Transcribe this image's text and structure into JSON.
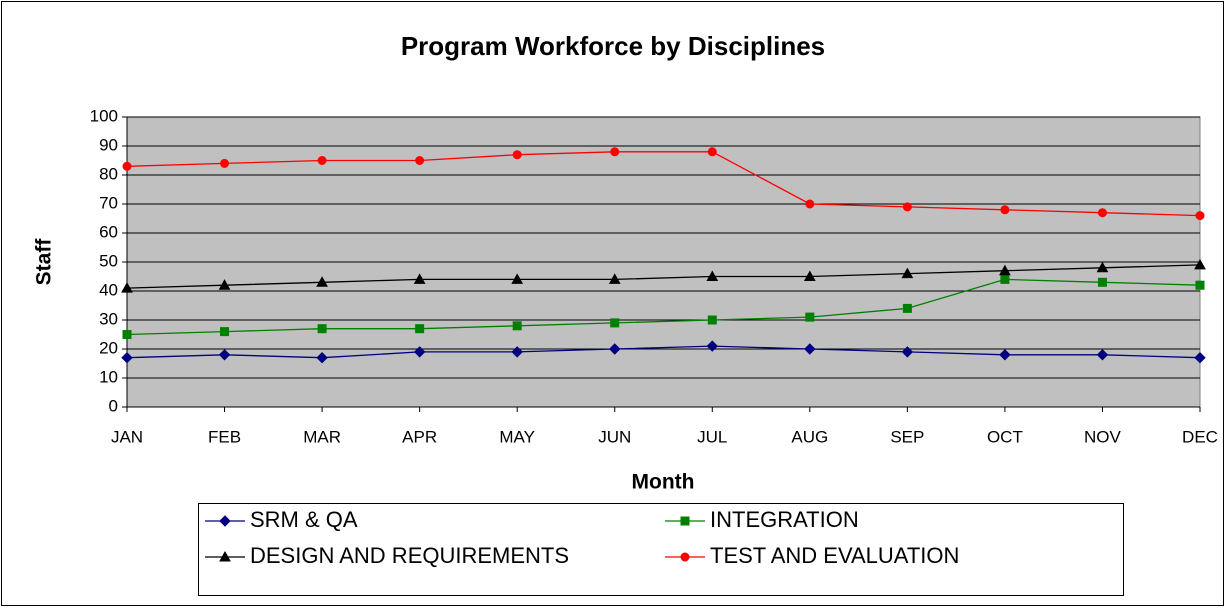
{
  "chart_data": {
    "type": "line",
    "title": "Program Workforce by Disciplines",
    "x_label": "Month",
    "y_label": "Staff",
    "categories": [
      "JAN",
      "FEB",
      "MAR",
      "APR",
      "MAY",
      "JUN",
      "JUL",
      "AUG",
      "SEP",
      "OCT",
      "NOV",
      "DEC"
    ],
    "series": [
      {
        "name": "SRM & QA",
        "color": "#000080",
        "marker": "diamond",
        "values": [
          17,
          18,
          17,
          19,
          19,
          20,
          21,
          20,
          19,
          18,
          18,
          17
        ]
      },
      {
        "name": "INTEGRATION",
        "color": "#008000",
        "marker": "square",
        "values": [
          25,
          26,
          27,
          27,
          28,
          29,
          30,
          31,
          34,
          44,
          43,
          42
        ]
      },
      {
        "name": "DESIGN AND REQUIREMENTS",
        "color": "#000000",
        "marker": "triangle",
        "values": [
          41,
          42,
          43,
          44,
          44,
          44,
          45,
          45,
          46,
          47,
          48,
          49
        ]
      },
      {
        "name": "TEST AND EVALUATION",
        "color": "#ff0000",
        "marker": "circle",
        "values": [
          83,
          84,
          85,
          85,
          87,
          88,
          88,
          70,
          69,
          68,
          67,
          66
        ]
      }
    ],
    "ylim": [
      0,
      100
    ],
    "yticks": [
      0,
      10,
      20,
      30,
      40,
      50,
      60,
      70,
      80,
      90,
      100
    ],
    "grid": true,
    "legend": "bottom"
  }
}
